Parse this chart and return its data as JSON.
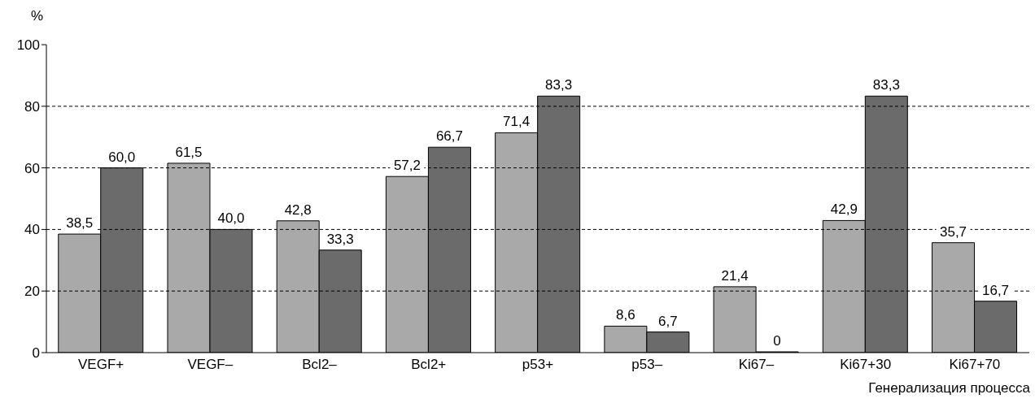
{
  "chart_data": {
    "type": "bar",
    "ylabel": "%",
    "xlabel": "Генерализация процесса",
    "categories": [
      "VEGF+",
      "VEGF–",
      "Bcl2–",
      "Bcl2+",
      "p53+",
      "p53–",
      "Ki67–",
      "Ki67+30",
      "Ki67+70"
    ],
    "series": [
      {
        "color": "#a9a9a9",
        "values": [
          38.5,
          61.5,
          42.8,
          57.2,
          71.4,
          8.6,
          21.4,
          42.9,
          35.7
        ],
        "value_labels": [
          "38,5",
          "61,5",
          "42,8",
          "57,2",
          "71,4",
          "8,6",
          "21,4",
          "42,9",
          "35,7"
        ]
      },
      {
        "color": "#6b6b6b",
        "values": [
          60.0,
          40.0,
          33.3,
          66.7,
          83.3,
          6.7,
          0,
          83.3,
          16.7
        ],
        "value_labels": [
          "60,0",
          "40,0",
          "33,3",
          "66,7",
          "83,3",
          "6,7",
          "0",
          "83,3",
          "16,7"
        ]
      }
    ],
    "ylim": [
      0,
      100
    ],
    "yticks": [
      0,
      20,
      40,
      60,
      80,
      100
    ],
    "grid": "y"
  }
}
